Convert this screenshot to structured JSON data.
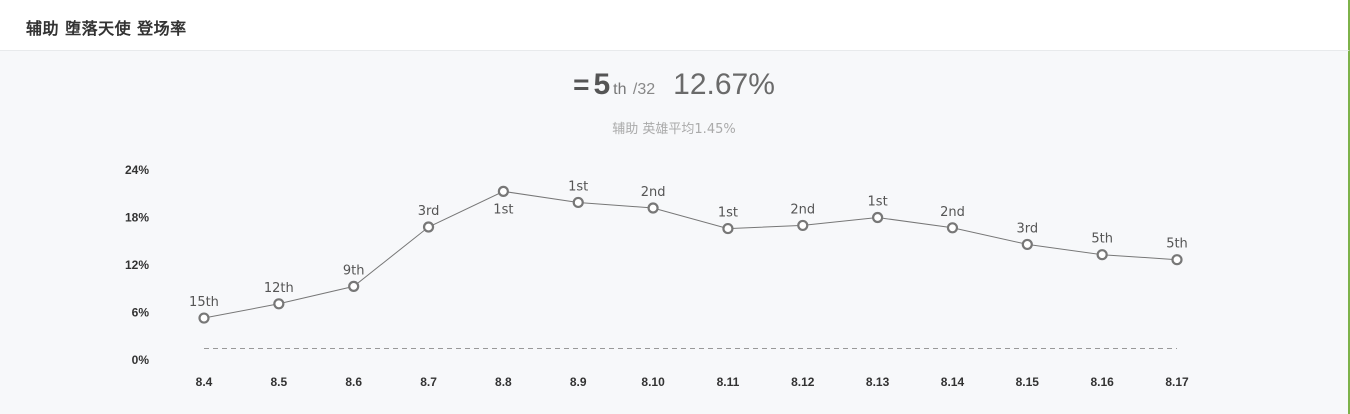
{
  "header": {
    "title": "辅助 堕落天使 登场率"
  },
  "summary": {
    "eq_symbol": "=",
    "rank": "5",
    "rank_suffix": "th",
    "rank_total": "/32",
    "percent": "12.67%",
    "average_text": "辅助 英雄平均1.45%"
  },
  "colors": {
    "line": "#777777",
    "marker_stroke": "#777777",
    "marker_fill": "#ffffff",
    "avg_line": "#999999",
    "accent": "#7db24a"
  },
  "chart_data": {
    "type": "line",
    "title": "",
    "xlabel": "",
    "ylabel": "",
    "grid": false,
    "legend": "none",
    "categories": [
      "8.4",
      "8.5",
      "8.6",
      "8.7",
      "8.8",
      "8.9",
      "8.10",
      "8.11",
      "8.12",
      "8.13",
      "8.14",
      "8.15",
      "8.16",
      "8.17"
    ],
    "ylim": [
      0,
      24
    ],
    "yticks": [
      "0%",
      "6%",
      "12%",
      "18%",
      "24%"
    ],
    "ytick_values": [
      0,
      6,
      12,
      18,
      24
    ],
    "series": [
      {
        "values": [
          5.3,
          7.1,
          9.3,
          16.8,
          21.3,
          19.9,
          19.2,
          16.6,
          17.0,
          18.0,
          16.7,
          14.6,
          13.3,
          12.67
        ],
        "point_labels": [
          "15th",
          "12th",
          "9th",
          "3rd",
          "1st",
          "1st",
          "2nd",
          "1st",
          "2nd",
          "1st",
          "2nd",
          "3rd",
          "5th",
          "5th"
        ]
      }
    ],
    "reference_line": {
      "value": 1.45
    }
  }
}
